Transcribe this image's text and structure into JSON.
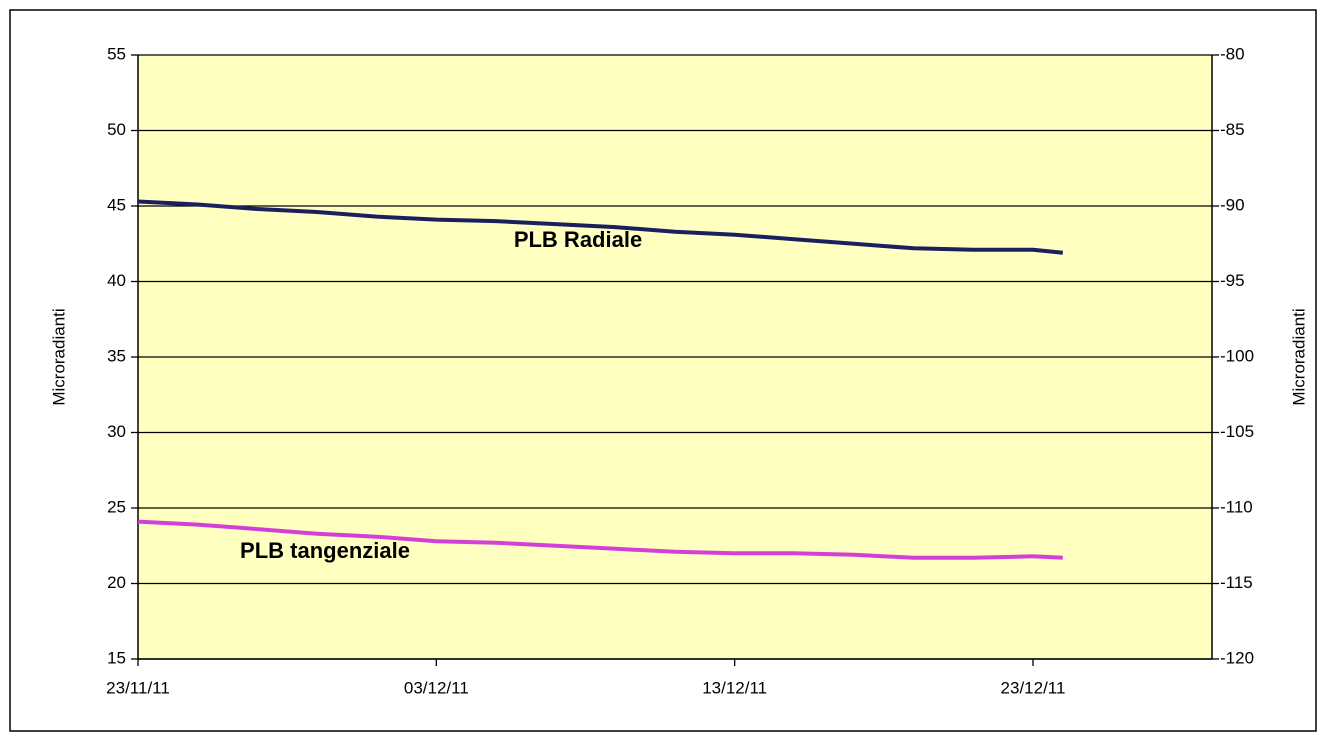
{
  "chart_data": {
    "type": "line",
    "y_label": "Microradianti",
    "y2_label": "Microradianti",
    "x": [
      "2011-11-23",
      "2011-11-25",
      "2011-11-27",
      "2011-11-29",
      "2011-12-01",
      "2011-12-03",
      "2011-12-05",
      "2011-12-07",
      "2011-12-09",
      "2011-12-11",
      "2011-12-13",
      "2011-12-15",
      "2011-12-17",
      "2011-12-19",
      "2011-12-21",
      "2011-12-23",
      "2011-12-24"
    ],
    "series": [
      {
        "name": "PLB Radiale",
        "color": "#1a1f5e",
        "values": [
          45.3,
          45.1,
          44.8,
          44.6,
          44.3,
          44.1,
          44.0,
          43.8,
          43.6,
          43.3,
          43.1,
          42.8,
          42.5,
          42.2,
          42.1,
          42.1,
          41.9
        ]
      },
      {
        "name": "PLB tangenziale",
        "color": "#d63fd6",
        "values": [
          24.1,
          23.9,
          23.6,
          23.3,
          23.1,
          22.8,
          22.7,
          22.5,
          22.3,
          22.1,
          22.0,
          22.0,
          21.9,
          21.7,
          21.7,
          21.8,
          21.7
        ]
      }
    ],
    "xlim": [
      "2011-11-23",
      "2011-12-29"
    ],
    "xticks": [
      {
        "value": "2011-11-23",
        "label": "23/11/11"
      },
      {
        "value": "2011-12-03",
        "label": "03/12/11"
      },
      {
        "value": "2011-12-13",
        "label": "13/12/11"
      },
      {
        "value": "2011-12-23",
        "label": "23/12/11"
      }
    ],
    "ylim": [
      15,
      55
    ],
    "yticks": [
      15,
      20,
      25,
      30,
      35,
      40,
      45,
      50,
      55
    ],
    "y2lim": [
      -120,
      -80
    ],
    "y2ticks": [
      -120,
      -115,
      -110,
      -105,
      -100,
      -95,
      -90,
      -85,
      -80
    ],
    "grid": true,
    "background": "#ffffc0"
  }
}
